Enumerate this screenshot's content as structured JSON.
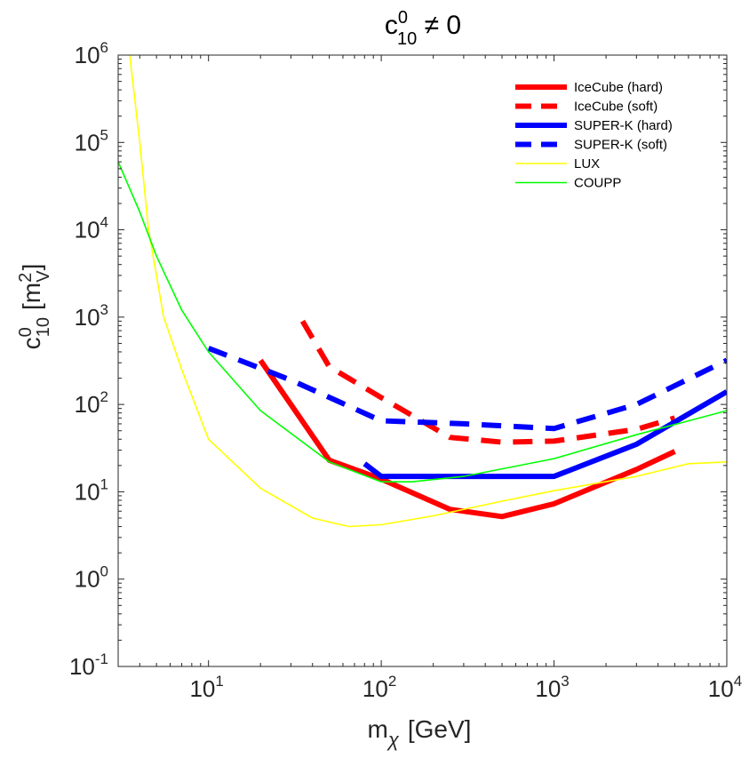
{
  "chart_data": {
    "type": "line",
    "scale": {
      "x": "log",
      "y": "log"
    },
    "title": {
      "base": "c",
      "sup": "0",
      "sub": "10",
      "rest": " ≠ 0"
    },
    "xlabel": {
      "base": "m",
      "sub": "χ",
      "rest": "[GeV]"
    },
    "ylabel": {
      "base": "c",
      "sup": "0",
      "sub": "10",
      "bracket_open": "[m",
      "bracket_sup": "2",
      "bracket_sub": "V",
      "bracket_close": "]"
    },
    "xlim": [
      3,
      10000
    ],
    "ylim": [
      0.1,
      1000000
    ],
    "x_ticks": [
      {
        "value": 10,
        "base": "10",
        "exp": "1"
      },
      {
        "value": 100,
        "base": "10",
        "exp": "2"
      },
      {
        "value": 1000,
        "base": "10",
        "exp": "3"
      },
      {
        "value": 10000,
        "base": "10",
        "exp": "4"
      }
    ],
    "y_ticks": [
      {
        "value": 0.1,
        "base": "10",
        "exp": "-1"
      },
      {
        "value": 1,
        "base": "10",
        "exp": "0"
      },
      {
        "value": 10,
        "base": "10",
        "exp": "1"
      },
      {
        "value": 100,
        "base": "10",
        "exp": "2"
      },
      {
        "value": 1000,
        "base": "10",
        "exp": "3"
      },
      {
        "value": 10000,
        "base": "10",
        "exp": "4"
      },
      {
        "value": 100000,
        "base": "10",
        "exp": "5"
      },
      {
        "value": 1000000,
        "base": "10",
        "exp": "6"
      }
    ],
    "legend_position": "top-right",
    "series": [
      {
        "name": "IceCube (hard)",
        "color": "#ff0000",
        "style": "solid",
        "weight": "thick",
        "points": [
          [
            20,
            320
          ],
          [
            50,
            23
          ],
          [
            100,
            14
          ],
          [
            250,
            6.3
          ],
          [
            500,
            5.2
          ],
          [
            1000,
            7.3
          ],
          [
            3000,
            18
          ],
          [
            5000,
            29
          ]
        ]
      },
      {
        "name": "IceCube (soft)",
        "color": "#ff0000",
        "style": "dashed",
        "weight": "thick",
        "points": [
          [
            35,
            900
          ],
          [
            50,
            270
          ],
          [
            100,
            120
          ],
          [
            250,
            42
          ],
          [
            500,
            37
          ],
          [
            1000,
            38
          ],
          [
            3000,
            52
          ],
          [
            5000,
            70
          ]
        ]
      },
      {
        "name": "SUPER-K (hard)",
        "color": "#0000ff",
        "style": "solid",
        "weight": "thick",
        "points": [
          [
            80,
            21
          ],
          [
            100,
            15
          ],
          [
            300,
            15
          ],
          [
            1000,
            15
          ],
          [
            3000,
            35
          ],
          [
            10000,
            140
          ]
        ]
      },
      {
        "name": "SUPER-K (soft)",
        "color": "#0000ff",
        "style": "dashed",
        "weight": "thick",
        "points": [
          [
            10,
            440
          ],
          [
            30,
            190
          ],
          [
            100,
            65
          ],
          [
            300,
            60
          ],
          [
            1000,
            53
          ],
          [
            3000,
            100
          ],
          [
            10000,
            320
          ]
        ]
      },
      {
        "name": "LUX",
        "color": "#ffff00",
        "style": "solid",
        "weight": "thin",
        "points": [
          [
            3.5,
            1000000
          ],
          [
            4,
            100000
          ],
          [
            4.5,
            10000
          ],
          [
            5.5,
            1000
          ],
          [
            7,
            250
          ],
          [
            10,
            40
          ],
          [
            20,
            11
          ],
          [
            40,
            5
          ],
          [
            65,
            4
          ],
          [
            100,
            4.2
          ],
          [
            200,
            5.3
          ],
          [
            500,
            7.8
          ],
          [
            1000,
            10.3
          ],
          [
            3000,
            15
          ],
          [
            6000,
            21
          ],
          [
            10000,
            22
          ]
        ]
      },
      {
        "name": "COUPP",
        "color": "#00ff00",
        "style": "solid",
        "weight": "thin",
        "points": [
          [
            3,
            60000
          ],
          [
            4,
            16000
          ],
          [
            5,
            5000
          ],
          [
            7,
            1200
          ],
          [
            10,
            400
          ],
          [
            20,
            85
          ],
          [
            50,
            22
          ],
          [
            100,
            13
          ],
          [
            150,
            13
          ],
          [
            300,
            15
          ],
          [
            1000,
            24
          ],
          [
            3000,
            45
          ],
          [
            10000,
            85
          ]
        ]
      }
    ]
  }
}
